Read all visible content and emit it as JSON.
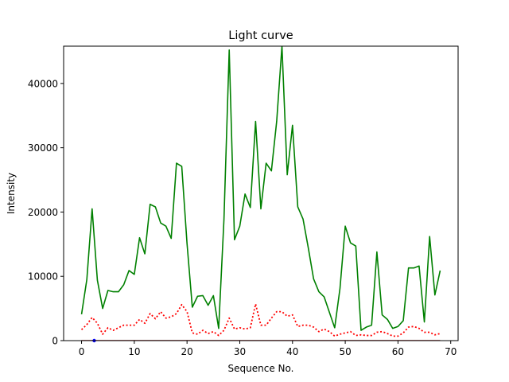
{
  "chart_data": {
    "type": "line",
    "title": "Light curve",
    "xlabel": "Sequence No.",
    "ylabel": "Intensity",
    "xlim": [
      -3.4,
      71.4
    ],
    "ylim": [
      0,
      45800
    ],
    "xticks": [
      0,
      10,
      20,
      30,
      40,
      50,
      60,
      70
    ],
    "yticks": [
      0,
      10000,
      20000,
      30000,
      40000
    ],
    "grid": false,
    "series": [
      {
        "color": "#008000",
        "style": "solid",
        "values": [
          4100,
          9500,
          20500,
          9400,
          5000,
          7800,
          7600,
          7600,
          8700,
          10900,
          10300,
          16000,
          13500,
          21200,
          20800,
          18300,
          17800,
          15900,
          27600,
          27100,
          15100,
          5200,
          6900,
          7000,
          5500,
          7000,
          1900,
          18800,
          45200,
          15700,
          17800,
          22800,
          20700,
          34100,
          20500,
          27600,
          26400,
          34100,
          45800,
          25800,
          33500,
          20800,
          18900,
          14400,
          9600,
          7600,
          6800,
          4400,
          2000,
          8100,
          17800,
          15200,
          14700,
          1600,
          2100,
          2400,
          13800,
          4000,
          3300,
          1900,
          2200,
          3100,
          11300,
          11300,
          11600,
          2900,
          16200,
          7100,
          10900
        ]
      },
      {
        "color": "#ff0000",
        "style": "dotted",
        "values": [
          1700,
          2500,
          3600,
          2700,
          1000,
          2000,
          1600,
          2000,
          2400,
          2400,
          2400,
          3300,
          2700,
          4200,
          3400,
          4500,
          3500,
          3700,
          4200,
          5600,
          4500,
          1200,
          1000,
          1600,
          1100,
          1400,
          800,
          1600,
          3500,
          1800,
          2000,
          1800,
          2000,
          5700,
          2400,
          2400,
          3500,
          4500,
          4500,
          3800,
          4000,
          2200,
          2400,
          2400,
          2100,
          1400,
          1800,
          1400,
          700,
          1000,
          1200,
          1400,
          800,
          900,
          800,
          800,
          1300,
          1400,
          1100,
          700,
          700,
          1200,
          2100,
          2200,
          1900,
          1300,
          1300,
          900,
          1100
        ]
      },
      {
        "color": "#8b0000",
        "style": "solid",
        "values": [
          0,
          0,
          0,
          0,
          0,
          0,
          0,
          0,
          0,
          0,
          0,
          0,
          0,
          0,
          0,
          0,
          0,
          0,
          0,
          0,
          0,
          0,
          0,
          0,
          0,
          0,
          0,
          0,
          0,
          0,
          0,
          0,
          0,
          0,
          0,
          0,
          0,
          0,
          0,
          0,
          0,
          0,
          0,
          0,
          0,
          0,
          0,
          0,
          0,
          0,
          0,
          0,
          0,
          0,
          0,
          0,
          0,
          0,
          0,
          0,
          0,
          0,
          0,
          0,
          0,
          0,
          0,
          0,
          0
        ]
      }
    ],
    "markers": [
      {
        "color": "#0000ff",
        "x": 2.4,
        "y": 0
      }
    ]
  }
}
